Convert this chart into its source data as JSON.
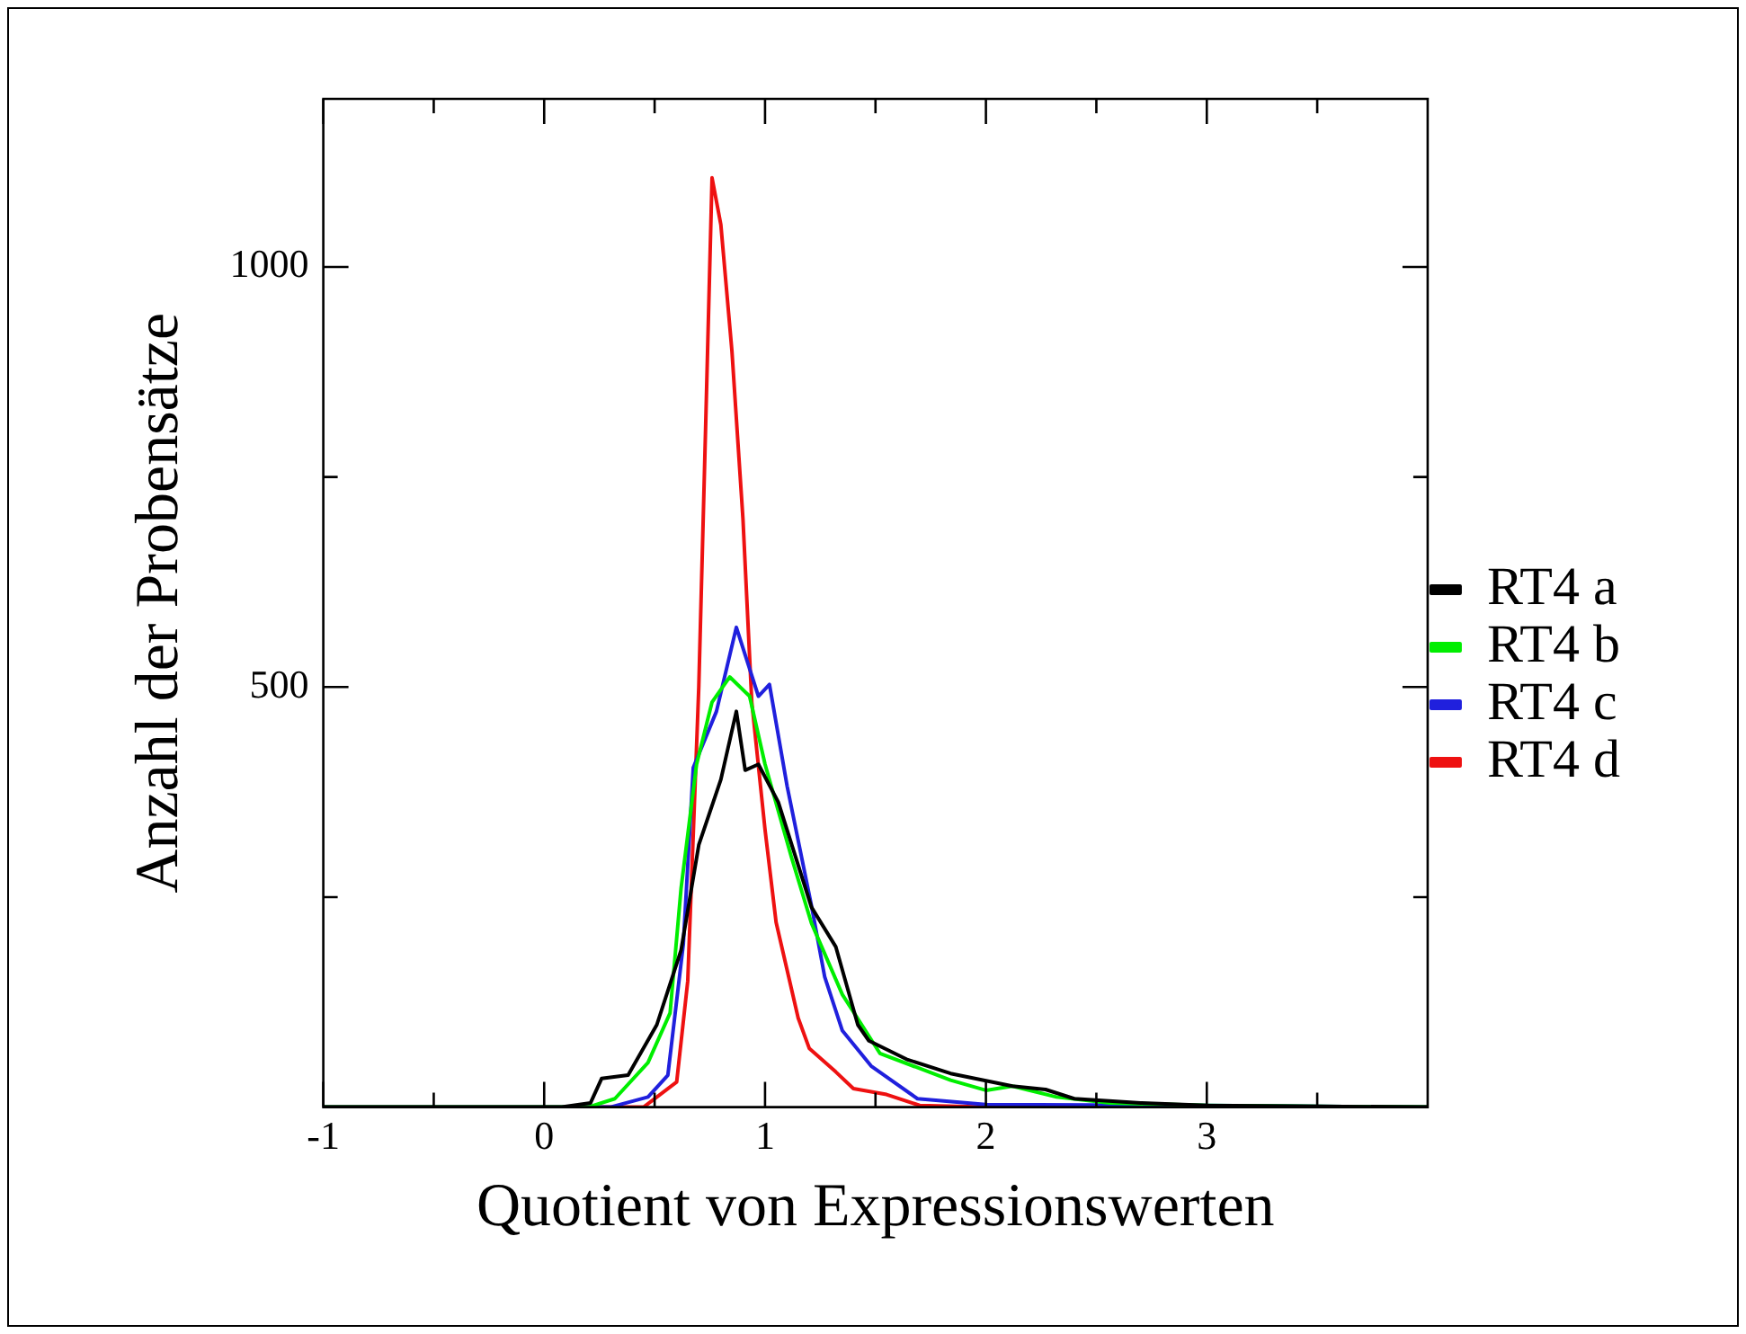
{
  "chart_data": {
    "type": "line",
    "xlabel": "Quotient von Expressionswerten",
    "ylabel": "Anzahl der Probensätze",
    "xlim": [
      -1,
      4
    ],
    "ylim": [
      0,
      1200
    ],
    "xticks": [
      -1,
      {
        "value": -0.5,
        "label": null
      },
      0,
      {
        "value": 0.5,
        "label": null
      },
      1,
      {
        "value": 1.5,
        "label": null
      },
      2,
      {
        "value": 2.5,
        "label": null
      },
      3,
      {
        "value": 3.5,
        "label": null
      }
    ],
    "yticks": [
      {
        "value": 250,
        "label": null
      },
      500,
      {
        "value": 750,
        "label": null
      },
      1000
    ],
    "grid": false,
    "legend": "right",
    "marker": "none",
    "line_style": "solid",
    "series": [
      {
        "name": "RT4 a",
        "color": "#000000",
        "x": [
          -1,
          0.08,
          0.21,
          0.26,
          0.38,
          0.51,
          0.62,
          0.7,
          0.8,
          0.87,
          0.91,
          0.97,
          1.06,
          1.21,
          1.32,
          1.42,
          1.47,
          1.64,
          1.84,
          2.12,
          2.27,
          2.4,
          2.7,
          3,
          4
        ],
        "values": [
          0,
          0,
          5,
          34,
          38,
          98,
          187,
          312,
          390,
          471,
          401,
          408,
          363,
          238,
          191,
          98,
          79,
          57,
          40,
          25,
          21,
          10,
          5,
          2,
          0
        ]
      },
      {
        "name": "RT4 b",
        "color": "#00ee00",
        "x": [
          -1,
          0.2,
          0.32,
          0.47,
          0.57,
          0.62,
          0.69,
          0.76,
          0.84,
          0.93,
          1.0,
          1.12,
          1.21,
          1.35,
          1.52,
          1.84,
          2.0,
          2.12,
          2.32,
          2.56,
          3,
          4
        ],
        "values": [
          0,
          0,
          10,
          53,
          112,
          261,
          408,
          482,
          512,
          489,
          408,
          297,
          219,
          134,
          64,
          32,
          20,
          25,
          12,
          5,
          2,
          0
        ]
      },
      {
        "name": "RT4 c",
        "color": "#2020dd",
        "x": [
          -1,
          0.3,
          0.47,
          0.56,
          0.63,
          0.675,
          0.78,
          0.87,
          0.97,
          1.02,
          1.1,
          1.21,
          1.27,
          1.35,
          1.48,
          1.69,
          2,
          3,
          4
        ],
        "values": [
          0,
          0,
          12,
          38,
          194,
          404,
          471,
          571,
          489,
          503,
          382,
          240,
          155,
          91,
          49,
          10,
          3,
          2,
          0
        ]
      },
      {
        "name": "RT4 d",
        "color": "#ee1111",
        "x": [
          -1,
          0.45,
          0.6,
          0.65,
          0.7,
          0.73,
          0.76,
          0.8,
          0.85,
          0.9,
          0.94,
          1.0,
          1.05,
          1.15,
          1.2,
          1.32,
          1.4,
          1.55,
          1.7,
          2,
          4
        ],
        "values": [
          0,
          0,
          30,
          150,
          500,
          800,
          1106,
          1050,
          900,
          700,
          482,
          330,
          220,
          106,
          70,
          42,
          22,
          15,
          2,
          0,
          0
        ]
      }
    ]
  }
}
